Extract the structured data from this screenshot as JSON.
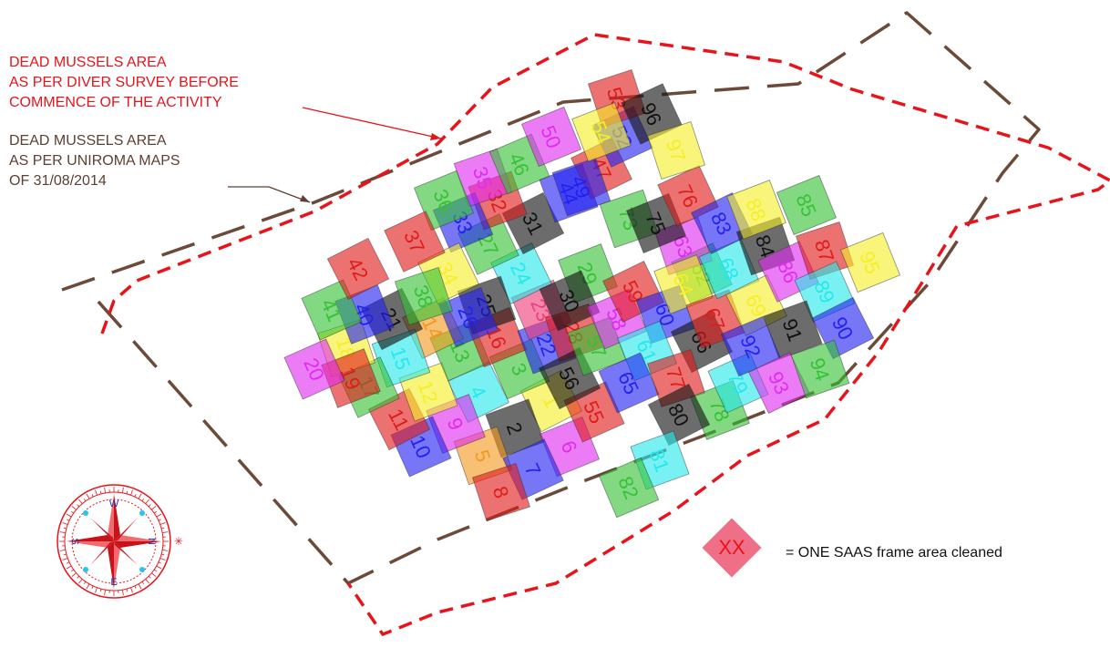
{
  "labels": {
    "red_line1": "DEAD MUSSELS AREA",
    "red_line2": "AS PER DIVER SURVEY BEFORE",
    "red_line3": "COMMENCE OF THE ACTIVITY",
    "brown_line1": "DEAD MUSSELS AREA",
    "brown_line2": "AS PER UNIROMA MAPS",
    "brown_line3": "OF 31/08/2014"
  },
  "legend": {
    "code": "XX",
    "text": "= ONE SAAS frame area cleaned",
    "swatch_color": "#ee6f86",
    "code_color": "#e8141b"
  },
  "compass": {
    "letters": [
      "N",
      "E",
      "S",
      "W"
    ]
  },
  "colors": {
    "red_boundary": "#e8141b",
    "brown_boundary": "#6b4a3a",
    "frame_palette": [
      "#36c136",
      "#2222f0",
      "#e01b1b",
      "#111111",
      "#f6ee28",
      "#e02bf0",
      "#26e8ec",
      "#f29a1f",
      "#ee3e78"
    ]
  },
  "frames": [
    {
      "n": "1",
      "c": "#f6ee28"
    },
    {
      "n": "2",
      "c": "#111111"
    },
    {
      "n": "3",
      "c": "#36c136"
    },
    {
      "n": "4",
      "c": "#26e8ec"
    },
    {
      "n": "5",
      "c": "#f29a1f"
    },
    {
      "n": "6",
      "c": "#e02bf0"
    },
    {
      "n": "7",
      "c": "#2222f0"
    },
    {
      "n": "8",
      "c": "#e01b1b"
    },
    {
      "n": "9",
      "c": "#e02bf0"
    },
    {
      "n": "10",
      "c": "#2222f0"
    },
    {
      "n": "11",
      "c": "#e01b1b"
    },
    {
      "n": "12",
      "c": "#f6ee28"
    },
    {
      "n": "13",
      "c": "#36c136"
    },
    {
      "n": "14",
      "c": "#f29a1f"
    },
    {
      "n": "15",
      "c": "#26e8ec"
    },
    {
      "n": "16",
      "c": "#e01b1b"
    },
    {
      "n": "17",
      "c": "#36c136"
    },
    {
      "n": "18",
      "c": "#f6ee28"
    },
    {
      "n": "19",
      "c": "#e01b1b"
    },
    {
      "n": "20",
      "c": "#e02bf0"
    },
    {
      "n": "21",
      "c": "#111111"
    },
    {
      "n": "22",
      "c": "#2222f0"
    },
    {
      "n": "23",
      "c": "#ee3e78"
    },
    {
      "n": "24",
      "c": "#26e8ec"
    },
    {
      "n": "25",
      "c": "#111111"
    },
    {
      "n": "26",
      "c": "#2222f0"
    },
    {
      "n": "27",
      "c": "#36c136"
    },
    {
      "n": "28",
      "c": "#e01b1b"
    },
    {
      "n": "29",
      "c": "#36c136"
    },
    {
      "n": "30",
      "c": "#111111"
    },
    {
      "n": "31",
      "c": "#111111"
    },
    {
      "n": "32",
      "c": "#e01b1b"
    },
    {
      "n": "33",
      "c": "#2222f0"
    },
    {
      "n": "34",
      "c": "#f6ee28"
    },
    {
      "n": "35",
      "c": "#e02bf0"
    },
    {
      "n": "36",
      "c": "#36c136"
    },
    {
      "n": "37",
      "c": "#e01b1b"
    },
    {
      "n": "38",
      "c": "#36c136"
    },
    {
      "n": "40",
      "c": "#2222f0"
    },
    {
      "n": "41",
      "c": "#36c136"
    },
    {
      "n": "42",
      "c": "#e01b1b"
    },
    {
      "n": "44",
      "c": "#2222f0"
    },
    {
      "n": "46",
      "c": "#36c136"
    },
    {
      "n": "47",
      "c": "#e01b1b"
    },
    {
      "n": "49",
      "c": "#2222f0"
    },
    {
      "n": "50",
      "c": "#e02bf0"
    },
    {
      "n": "52",
      "c": "#2222f0"
    },
    {
      "n": "53",
      "c": "#e01b1b"
    },
    {
      "n": "54",
      "c": "#f6ee28"
    },
    {
      "n": "55",
      "c": "#e01b1b"
    },
    {
      "n": "56",
      "c": "#111111"
    },
    {
      "n": "57",
      "c": "#36c136"
    },
    {
      "n": "58",
      "c": "#e02bf0"
    },
    {
      "n": "59",
      "c": "#e01b1b"
    },
    {
      "n": "60",
      "c": "#2222f0"
    },
    {
      "n": "61",
      "c": "#26e8ec"
    },
    {
      "n": "62",
      "c": "#36c136"
    },
    {
      "n": "63",
      "c": "#e02bf0"
    },
    {
      "n": "64",
      "c": "#f6ee28"
    },
    {
      "n": "65",
      "c": "#2222f0"
    },
    {
      "n": "66",
      "c": "#111111"
    },
    {
      "n": "67",
      "c": "#e01b1b"
    },
    {
      "n": "68",
      "c": "#26e8ec"
    },
    {
      "n": "69",
      "c": "#f6ee28"
    },
    {
      "n": "73",
      "c": "#36c136"
    },
    {
      "n": "75",
      "c": "#111111"
    },
    {
      "n": "76",
      "c": "#e01b1b"
    },
    {
      "n": "77",
      "c": "#e01b1b"
    },
    {
      "n": "78",
      "c": "#36c136"
    },
    {
      "n": "79",
      "c": "#26e8ec"
    },
    {
      "n": "80",
      "c": "#111111"
    },
    {
      "n": "81",
      "c": "#26e8ec"
    },
    {
      "n": "82",
      "c": "#36c136"
    },
    {
      "n": "83",
      "c": "#2222f0"
    },
    {
      "n": "84",
      "c": "#111111"
    },
    {
      "n": "85",
      "c": "#36c136"
    },
    {
      "n": "86",
      "c": "#e02bf0"
    },
    {
      "n": "87",
      "c": "#e01b1b"
    },
    {
      "n": "88",
      "c": "#f6ee28"
    },
    {
      "n": "89",
      "c": "#26e8ec"
    },
    {
      "n": "90",
      "c": "#2222f0"
    },
    {
      "n": "91",
      "c": "#111111"
    },
    {
      "n": "92",
      "c": "#2222f0"
    },
    {
      "n": "93",
      "c": "#e02bf0"
    },
    {
      "n": "94",
      "c": "#36c136"
    },
    {
      "n": "95",
      "c": "#f6ee28"
    },
    {
      "n": "96",
      "c": "#111111"
    },
    {
      "n": "97",
      "c": "#f6ee28"
    }
  ]
}
